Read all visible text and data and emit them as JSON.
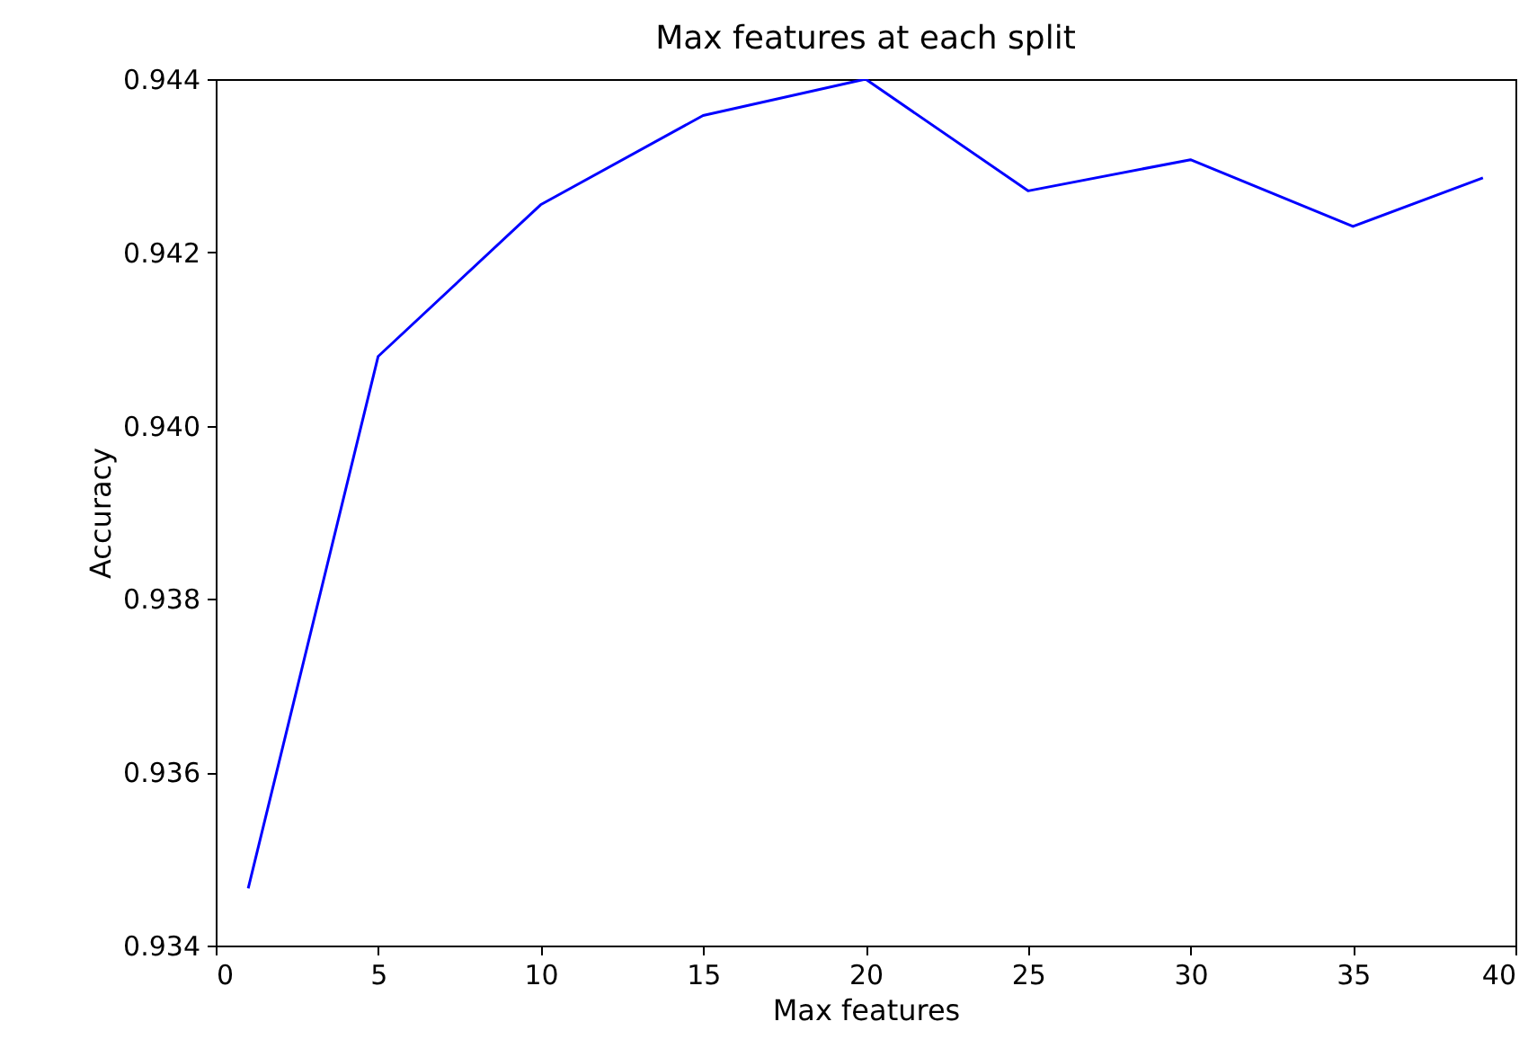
{
  "chart_data": {
    "type": "line",
    "title": "Max features at each split",
    "xlabel": "Max features",
    "ylabel": "Accuracy",
    "x": [
      1,
      5,
      10,
      15,
      20,
      25,
      30,
      35,
      39
    ],
    "series": [
      {
        "color": "#0000ff",
        "values": [
          0.93466,
          0.9408,
          0.94255,
          0.94358,
          0.944,
          0.94271,
          0.94307,
          0.9423,
          0.94286
        ]
      }
    ],
    "xlim": [
      0,
      40
    ],
    "xticks": [
      0,
      5,
      10,
      15,
      20,
      25,
      30,
      35,
      40
    ],
    "ylim": [
      0.934,
      0.944
    ],
    "yticks": [
      0.934,
      0.936,
      0.938,
      {
        "value": 0.94,
        "label": "0.940"
      },
      0.942,
      0.944
    ],
    "grid": false,
    "marker": "none",
    "line_style": "solid"
  }
}
